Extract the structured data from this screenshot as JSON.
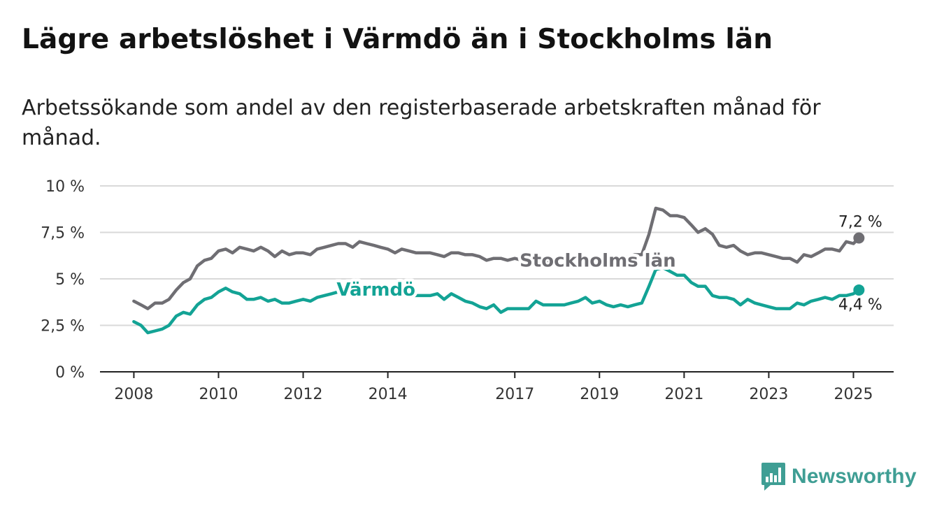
{
  "title": "Lägre arbetslöshet i Värmdö än i Stockholms län",
  "subtitle": "Arbetssökande som andel av den registerbaserade arbetskraften månad för månad.",
  "logo": {
    "text": "Newsworthy",
    "icon": "bar-chart-speech-bubble-icon",
    "color": "#3f9e94"
  },
  "chart_data": {
    "type": "line",
    "y_ticks": [
      {
        "value": 0,
        "label": "0 %"
      },
      {
        "value": 2.5,
        "label": "2,5 %"
      },
      {
        "value": 5,
        "label": "5 %"
      },
      {
        "value": 7.5,
        "label": "7,5 %"
      },
      {
        "value": 10,
        "label": "10 %"
      }
    ],
    "x_ticks": [
      {
        "value": 2008,
        "label": "2008"
      },
      {
        "value": 2010,
        "label": "2010"
      },
      {
        "value": 2012,
        "label": "2012"
      },
      {
        "value": 2014,
        "label": "2014"
      },
      {
        "value": 2017,
        "label": "2017"
      },
      {
        "value": 2019,
        "label": "2019"
      },
      {
        "value": 2021,
        "label": "2021"
      },
      {
        "value": 2023,
        "label": "2023"
      },
      {
        "value": 2025,
        "label": "2025"
      }
    ],
    "xlim": [
      2007.2,
      2025.95
    ],
    "ylim": [
      0,
      10
    ],
    "grid": "horizontal",
    "series": [
      {
        "name": "Stockholms län",
        "color": "#6f6e73",
        "end_value_label": "7,2 %",
        "x": [
          2008.0,
          2008.17,
          2008.33,
          2008.5,
          2008.67,
          2008.83,
          2009.0,
          2009.17,
          2009.33,
          2009.5,
          2009.67,
          2009.83,
          2010.0,
          2010.17,
          2010.33,
          2010.5,
          2010.67,
          2010.83,
          2011.0,
          2011.17,
          2011.33,
          2011.5,
          2011.67,
          2011.83,
          2012.0,
          2012.17,
          2012.33,
          2012.5,
          2012.67,
          2012.83,
          2013.0,
          2013.17,
          2013.33,
          2013.5,
          2013.67,
          2013.83,
          2014.0,
          2014.17,
          2014.33,
          2014.5,
          2014.67,
          2014.83,
          2015.0,
          2015.17,
          2015.33,
          2015.5,
          2015.67,
          2015.83,
          2016.0,
          2016.17,
          2016.33,
          2016.5,
          2016.67,
          2016.83,
          2017.0,
          2017.17,
          2017.33,
          2017.5,
          2017.67,
          2017.83,
          2018.0,
          2018.17,
          2018.33,
          2018.5,
          2018.67,
          2018.83,
          2019.0,
          2019.17,
          2019.33,
          2019.5,
          2019.67,
          2019.83,
          2020.0,
          2020.17,
          2020.33,
          2020.5,
          2020.67,
          2020.83,
          2021.0,
          2021.17,
          2021.33,
          2021.5,
          2021.67,
          2021.83,
          2022.0,
          2022.17,
          2022.33,
          2022.5,
          2022.67,
          2022.83,
          2023.0,
          2023.17,
          2023.33,
          2023.5,
          2023.67,
          2023.83,
          2024.0,
          2024.17,
          2024.33,
          2024.5,
          2024.67,
          2024.83,
          2025.0,
          2025.13
        ],
        "values": [
          3.8,
          3.6,
          3.4,
          3.7,
          3.7,
          3.9,
          4.4,
          4.8,
          5.0,
          5.7,
          6.0,
          6.1,
          6.5,
          6.6,
          6.4,
          6.7,
          6.6,
          6.5,
          6.7,
          6.5,
          6.2,
          6.5,
          6.3,
          6.4,
          6.4,
          6.3,
          6.6,
          6.7,
          6.8,
          6.9,
          6.9,
          6.7,
          7.0,
          6.9,
          6.8,
          6.7,
          6.6,
          6.4,
          6.6,
          6.5,
          6.4,
          6.4,
          6.4,
          6.3,
          6.2,
          6.4,
          6.4,
          6.3,
          6.3,
          6.2,
          6.0,
          6.1,
          6.1,
          6.0,
          6.1,
          6.0,
          5.9,
          6.0,
          5.9,
          5.9,
          6.0,
          6.1,
          6.0,
          6.0,
          6.1,
          6.1,
          6.0,
          6.1,
          6.2,
          6.1,
          6.2,
          6.3,
          6.3,
          7.4,
          8.8,
          8.7,
          8.4,
          8.4,
          8.3,
          7.9,
          7.5,
          7.7,
          7.4,
          6.8,
          6.7,
          6.8,
          6.5,
          6.3,
          6.4,
          6.4,
          6.3,
          6.2,
          6.1,
          6.1,
          5.9,
          6.3,
          6.2,
          6.4,
          6.6,
          6.6,
          6.5,
          7.0,
          6.9,
          7.2
        ]
      },
      {
        "name": "Värmdö",
        "color": "#13a395",
        "end_value_label": "4,4 %",
        "x": [
          2008.0,
          2008.17,
          2008.33,
          2008.5,
          2008.67,
          2008.83,
          2009.0,
          2009.17,
          2009.33,
          2009.5,
          2009.67,
          2009.83,
          2010.0,
          2010.17,
          2010.33,
          2010.5,
          2010.67,
          2010.83,
          2011.0,
          2011.17,
          2011.33,
          2011.5,
          2011.67,
          2011.83,
          2012.0,
          2012.17,
          2012.33,
          2012.5,
          2012.67,
          2012.83,
          2013.0,
          2013.17,
          2013.33,
          2013.5,
          2013.67,
          2013.83,
          2014.0,
          2014.17,
          2014.33,
          2014.5,
          2014.67,
          2014.83,
          2015.0,
          2015.17,
          2015.33,
          2015.5,
          2015.67,
          2015.83,
          2016.0,
          2016.17,
          2016.33,
          2016.5,
          2016.67,
          2016.83,
          2017.0,
          2017.17,
          2017.33,
          2017.5,
          2017.67,
          2017.83,
          2018.0,
          2018.17,
          2018.33,
          2018.5,
          2018.67,
          2018.83,
          2019.0,
          2019.17,
          2019.33,
          2019.5,
          2019.67,
          2019.83,
          2020.0,
          2020.17,
          2020.33,
          2020.5,
          2020.67,
          2020.83,
          2021.0,
          2021.17,
          2021.33,
          2021.5,
          2021.67,
          2021.83,
          2022.0,
          2022.17,
          2022.33,
          2022.5,
          2022.67,
          2022.83,
          2023.0,
          2023.17,
          2023.33,
          2023.5,
          2023.67,
          2023.83,
          2024.0,
          2024.17,
          2024.33,
          2024.5,
          2024.67,
          2024.83,
          2025.0,
          2025.13
        ],
        "values": [
          2.7,
          2.5,
          2.1,
          2.2,
          2.3,
          2.5,
          3.0,
          3.2,
          3.1,
          3.6,
          3.9,
          4.0,
          4.3,
          4.5,
          4.3,
          4.2,
          3.9,
          3.9,
          4.0,
          3.8,
          3.9,
          3.7,
          3.7,
          3.8,
          3.9,
          3.8,
          4.0,
          4.1,
          4.2,
          4.3,
          4.2,
          4.2,
          4.3,
          4.4,
          4.3,
          4.2,
          4.2,
          4.1,
          4.2,
          4.1,
          4.1,
          4.1,
          4.1,
          4.2,
          3.9,
          4.2,
          4.0,
          3.8,
          3.7,
          3.5,
          3.4,
          3.6,
          3.2,
          3.4,
          3.4,
          3.4,
          3.4,
          3.8,
          3.6,
          3.6,
          3.6,
          3.6,
          3.7,
          3.8,
          4.0,
          3.7,
          3.8,
          3.6,
          3.5,
          3.6,
          3.5,
          3.6,
          3.7,
          4.6,
          5.5,
          5.6,
          5.4,
          5.2,
          5.2,
          4.8,
          4.6,
          4.6,
          4.1,
          4.0,
          4.0,
          3.9,
          3.6,
          3.9,
          3.7,
          3.6,
          3.5,
          3.4,
          3.4,
          3.4,
          3.7,
          3.6,
          3.8,
          3.9,
          4.0,
          3.9,
          4.1,
          4.1,
          4.2,
          4.4
        ]
      }
    ]
  }
}
